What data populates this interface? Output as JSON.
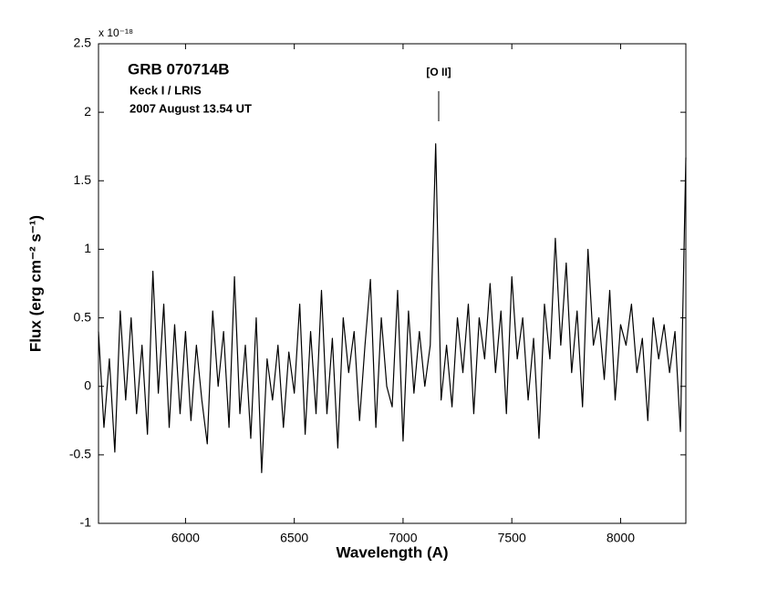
{
  "chart_data": {
    "type": "line",
    "title": "GRB 070714B",
    "subtitle": [
      "Keck I / LRIS",
      "2007 August 13.54 UT"
    ],
    "x_label": "Wavelength (A)",
    "y_label": "Flux (erg cm⁻² s⁻¹)",
    "y_scale_label": "x 10⁻¹⁸",
    "annotation": "[O II]",
    "color": "#000000",
    "xlim": [
      5600,
      8300
    ],
    "xticks": [
      6000,
      6500,
      7000,
      7500,
      8000
    ],
    "ylim": [
      -1,
      2.5
    ],
    "yticks": [
      -1,
      -0.5,
      0,
      0.5,
      1,
      1.5,
      2,
      2.5
    ],
    "x": [
      5600,
      5625,
      5650,
      5675,
      5700,
      5725,
      5750,
      5775,
      5800,
      5825,
      5850,
      5875,
      5900,
      5925,
      5950,
      5975,
      6000,
      6025,
      6050,
      6075,
      6100,
      6125,
      6150,
      6175,
      6200,
      6225,
      6250,
      6275,
      6300,
      6325,
      6350,
      6375,
      6400,
      6425,
      6450,
      6475,
      6500,
      6525,
      6550,
      6575,
      6600,
      6625,
      6650,
      6675,
      6700,
      6725,
      6750,
      6775,
      6800,
      6825,
      6850,
      6875,
      6900,
      6925,
      6950,
      6975,
      7000,
      7025,
      7050,
      7075,
      7100,
      7125,
      7150,
      7175,
      7200,
      7225,
      7250,
      7275,
      7300,
      7325,
      7350,
      7375,
      7400,
      7425,
      7450,
      7475,
      7500,
      7525,
      7550,
      7575,
      7600,
      7625,
      7650,
      7675,
      7700,
      7725,
      7750,
      7775,
      7800,
      7825,
      7850,
      7875,
      7900,
      7925,
      7950,
      7975,
      8000,
      8025,
      8050,
      8075,
      8100,
      8125,
      8150,
      8175,
      8200,
      8225,
      8250,
      8275,
      8300
    ],
    "values": [
      0.4,
      -0.3,
      0.2,
      -0.48,
      0.55,
      -0.1,
      0.5,
      -0.2,
      0.3,
      -0.35,
      0.84,
      -0.05,
      0.6,
      -0.3,
      0.45,
      -0.2,
      0.4,
      -0.25,
      0.3,
      -0.1,
      -0.42,
      0.55,
      0.0,
      0.4,
      -0.3,
      0.8,
      -0.2,
      0.3,
      -0.38,
      0.5,
      -0.63,
      0.2,
      -0.1,
      0.3,
      -0.3,
      0.25,
      -0.05,
      0.6,
      -0.35,
      0.4,
      -0.2,
      0.7,
      -0.2,
      0.35,
      -0.45,
      0.5,
      0.1,
      0.4,
      -0.25,
      0.3,
      0.78,
      -0.3,
      0.5,
      0.0,
      -0.15,
      0.7,
      -0.4,
      0.55,
      -0.05,
      0.4,
      0.0,
      0.3,
      1.77,
      -0.1,
      0.3,
      -0.15,
      0.5,
      0.1,
      0.6,
      -0.2,
      0.5,
      0.2,
      0.75,
      0.1,
      0.55,
      -0.2,
      0.8,
      0.2,
      0.5,
      -0.1,
      0.35,
      -0.38,
      0.6,
      0.2,
      1.08,
      0.3,
      0.9,
      0.1,
      0.55,
      -0.15,
      1.0,
      0.3,
      0.5,
      0.05,
      0.7,
      -0.1,
      0.45,
      0.3,
      0.6,
      0.1,
      0.35,
      -0.25,
      0.5,
      0.2,
      0.45,
      0.1,
      0.4,
      -0.33,
      1.67
    ]
  }
}
